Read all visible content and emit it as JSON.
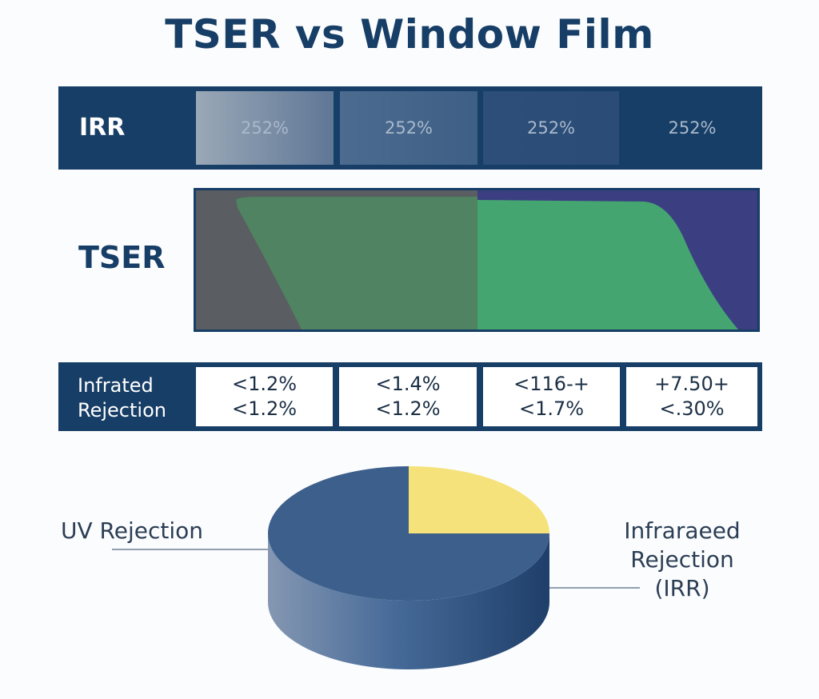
{
  "title": "TSER vs Window Film",
  "colors": {
    "navy": "#173e66",
    "green": "#45a571",
    "purple": "#3b3f82",
    "yellow": "#f6e27a",
    "pie_blue": "#3c5f8c"
  },
  "chart_data": [
    {
      "type": "table",
      "row_label": "IRR",
      "values": [
        "252%",
        "252%",
        "252%",
        "252%"
      ]
    },
    {
      "type": "area",
      "row_label": "TSER",
      "series": []
    },
    {
      "type": "table",
      "row_label": [
        "Infrated",
        "Rejection"
      ],
      "cells": [
        [
          "<1.2%",
          "<1.2%"
        ],
        [
          "<1.4%",
          "<1.2%"
        ],
        [
          "<116-+",
          "<1.7%"
        ],
        [
          "+7.50+",
          "<.30%"
        ]
      ]
    },
    {
      "type": "pie",
      "labels": [
        "UV Rejection",
        "Infraraeed Rejection (IRR)"
      ],
      "values": [
        75,
        25
      ]
    }
  ]
}
